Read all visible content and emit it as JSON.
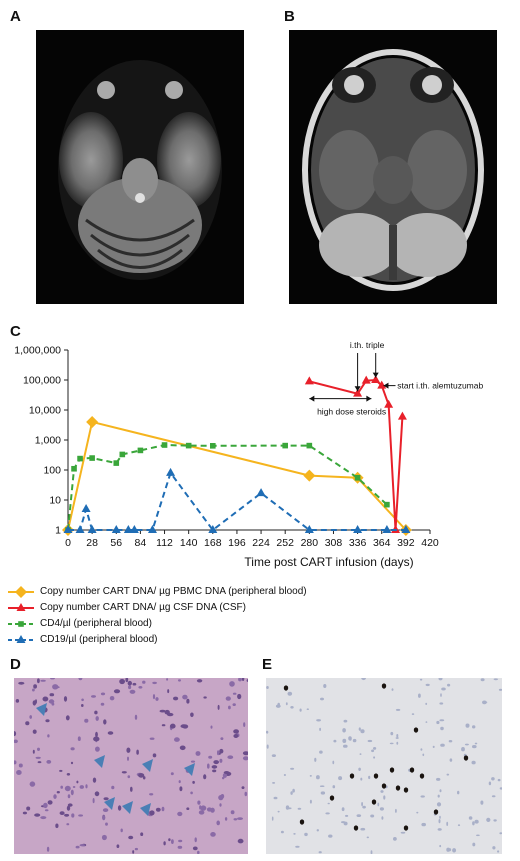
{
  "panels": {
    "a": "A",
    "b": "B",
    "c": "C",
    "d": "D",
    "e": "E"
  },
  "chart_data": {
    "type": "line",
    "xlabel": "Time post CART infusion (days)",
    "ylabel": "",
    "x_ticks": [
      0,
      28,
      56,
      84,
      112,
      140,
      168,
      196,
      224,
      252,
      280,
      308,
      336,
      364,
      392,
      420
    ],
    "y_ticks": [
      "1",
      "10",
      "100",
      "1,000",
      "10,000",
      "100,000",
      "1,000,000"
    ],
    "y_scale": "log",
    "ylim": [
      1,
      1000000
    ],
    "xlim": [
      0,
      420
    ],
    "series": [
      {
        "name": "Copy number CART DNA/ µg PBMC DNA (peripheral blood)",
        "color": "#f5b41e",
        "style": "solid",
        "marker": "diamond",
        "points": [
          [
            0,
            1
          ],
          [
            28,
            4000
          ],
          [
            280,
            65
          ],
          [
            336,
            55
          ],
          [
            392,
            1
          ]
        ]
      },
      {
        "name": "Copy number CART DNA/ µg CSF DNA (CSF)",
        "color": "#e8202a",
        "style": "solid",
        "marker": "triangle",
        "points": [
          [
            280,
            90000
          ],
          [
            336,
            35000
          ],
          [
            346,
            95000
          ],
          [
            357,
            100000
          ],
          [
            364,
            65000
          ],
          [
            372,
            15000
          ],
          [
            380,
            1
          ],
          [
            388,
            6000
          ]
        ]
      },
      {
        "name": "CD4/µl (peripheral blood)",
        "color": "#3aa63a",
        "style": "dashed",
        "marker": "square",
        "points": [
          [
            0,
            1
          ],
          [
            7,
            110
          ],
          [
            14,
            240
          ],
          [
            28,
            250
          ],
          [
            56,
            170
          ],
          [
            63,
            330
          ],
          [
            84,
            450
          ],
          [
            112,
            680
          ],
          [
            140,
            650
          ],
          [
            168,
            640
          ],
          [
            252,
            650
          ],
          [
            280,
            650
          ],
          [
            336,
            55
          ],
          [
            370,
            7
          ]
        ]
      },
      {
        "name": "CD19/µl (peripheral blood)",
        "color": "#1f6db5",
        "style": "dashed",
        "marker": "triangle",
        "points": [
          [
            0,
            1
          ],
          [
            14,
            1
          ],
          [
            21,
            5
          ],
          [
            28,
            1
          ],
          [
            56,
            1
          ],
          [
            70,
            1
          ],
          [
            77,
            1
          ],
          [
            98,
            1
          ],
          [
            119,
            80
          ],
          [
            168,
            1
          ],
          [
            224,
            17
          ],
          [
            280,
            1
          ],
          [
            336,
            1
          ],
          [
            370,
            1
          ],
          [
            392,
            1
          ]
        ]
      }
    ],
    "annotations": [
      {
        "text": "i.th. triple"
      },
      {
        "text": "start i.th. alemtuzumab"
      },
      {
        "text": "high dose steroids"
      }
    ]
  }
}
